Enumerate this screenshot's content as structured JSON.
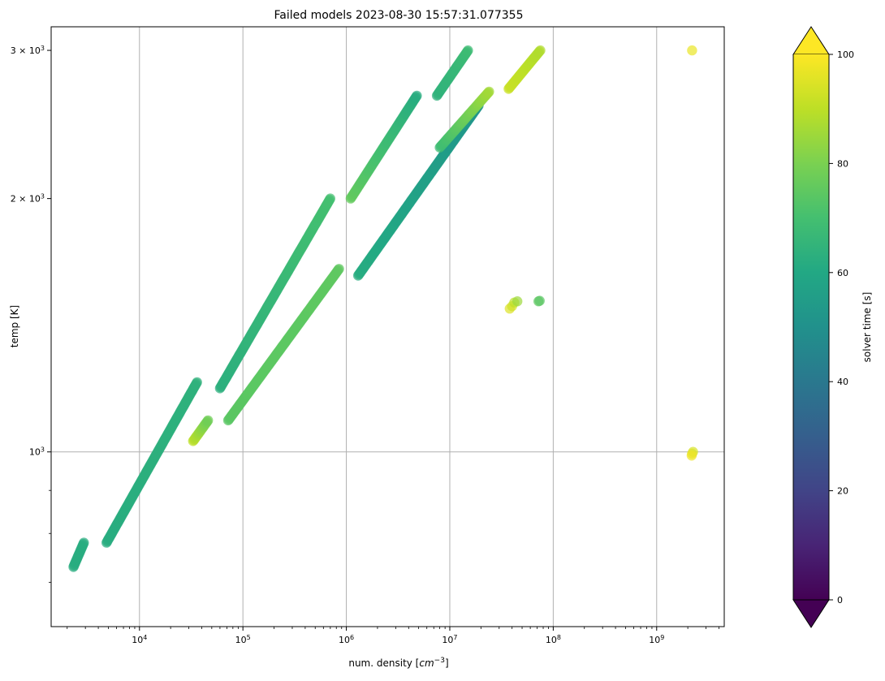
{
  "chart_data": {
    "type": "scatter",
    "title": "Failed models 2023-08-30 15:57:31.077355",
    "xlabel_main": "num. density [",
    "xlabel_unit": "cm",
    "xlabel_exp": "−3",
    "xlabel_close": "]",
    "ylabel": "temp [K]",
    "xscale": "log",
    "yscale": "log",
    "xlim": [
      1400,
      4500000000
    ],
    "ylim": [
      620,
      3200
    ],
    "grid": true,
    "x_ticks": [
      {
        "value": 10000,
        "base": "10",
        "exp": "4"
      },
      {
        "value": 100000,
        "base": "10",
        "exp": "5"
      },
      {
        "value": 1000000,
        "base": "10",
        "exp": "6"
      },
      {
        "value": 10000000,
        "base": "10",
        "exp": "7"
      },
      {
        "value": 100000000,
        "base": "10",
        "exp": "8"
      },
      {
        "value": 1000000000,
        "base": "10",
        "exp": "9"
      }
    ],
    "y_ticks": [
      {
        "value": 1000,
        "mant": "",
        "base": "10",
        "exp": "3"
      },
      {
        "value": 2000,
        "mant": "2 × ",
        "base": "10",
        "exp": "3"
      },
      {
        "value": 3000,
        "mant": "3 × ",
        "base": "10",
        "exp": "3"
      }
    ],
    "colorbar": {
      "label": "solver time [s]",
      "colormap": "viridis",
      "min": 0,
      "max": 100,
      "extend": "both",
      "ticks": [
        "0",
        "20",
        "40",
        "60",
        "80",
        "100"
      ]
    },
    "segments": [
      {
        "x0": 2300,
        "x1": 2900,
        "y0": 730,
        "y1": 780,
        "c0": 62,
        "c1": 62
      },
      {
        "x0": 4800,
        "x1": 36000,
        "y0": 780,
        "y1": 1210,
        "c0": 62,
        "c1": 64
      },
      {
        "x0": 33000,
        "x1": 46000,
        "y0": 1030,
        "y1": 1090,
        "c0": 90,
        "c1": 78
      },
      {
        "x0": 60000,
        "x1": 700000,
        "y0": 1190,
        "y1": 2000,
        "c0": 63,
        "c1": 70
      },
      {
        "x0": 72000,
        "x1": 850000,
        "y0": 1090,
        "y1": 1650,
        "c0": 74,
        "c1": 75
      },
      {
        "x0": 1100000,
        "x1": 4800000,
        "y0": 2000,
        "y1": 2650,
        "c0": 76,
        "c1": 62
      },
      {
        "x0": 1300000,
        "x1": 19000000,
        "y0": 1620,
        "y1": 2580,
        "c0": 62,
        "c1": 52
      },
      {
        "x0": 7500000,
        "x1": 15000000,
        "y0": 2650,
        "y1": 3000,
        "c0": 64,
        "c1": 68
      },
      {
        "x0": 8000000,
        "x1": 24000000,
        "y0": 2300,
        "y1": 2680,
        "c0": 68,
        "c1": 86
      },
      {
        "x0": 37000000,
        "x1": 75000000,
        "y0": 2700,
        "y1": 3000,
        "c0": 92,
        "c1": 88
      }
    ],
    "points": [
      {
        "x": 38000000,
        "y": 1480,
        "c": 95
      },
      {
        "x": 40000000,
        "y": 1490,
        "c": 93
      },
      {
        "x": 42000000,
        "y": 1505,
        "c": 90
      },
      {
        "x": 45000000,
        "y": 1510,
        "c": 85
      },
      {
        "x": 72000000,
        "y": 1510,
        "c": 75
      },
      {
        "x": 74000000,
        "y": 1512,
        "c": 74
      },
      {
        "x": 2200000000,
        "y": 3000,
        "c": 97
      },
      {
        "x": 2200000000,
        "y": 995,
        "c": 96
      },
      {
        "x": 2250000000,
        "y": 1000,
        "c": 94
      },
      {
        "x": 2180000000,
        "y": 990,
        "c": 98
      }
    ]
  }
}
